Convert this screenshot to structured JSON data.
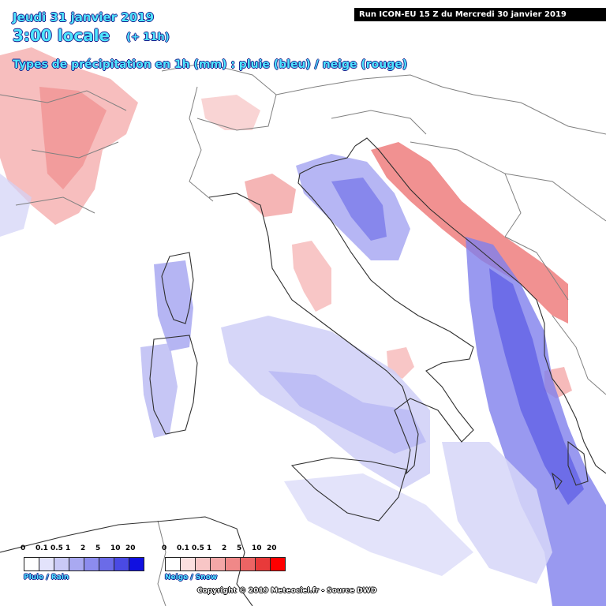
{
  "header": {
    "date": "Jeudi 31 janvier 2019",
    "time": "3:00 locale",
    "lead": "(+ 11h)",
    "subtitle": "Types de précipitation en 1h (mm) : pluie (bleu) / neige (rouge)",
    "run": "Run ICON-EU 15 Z du Mercredi 30 janvier 2019"
  },
  "legend_rain": {
    "label": "Pluie / Rain",
    "ticks": [
      "0",
      "0.1",
      "0.5",
      "1",
      "2",
      "5",
      "10",
      "20"
    ],
    "colors": [
      "#ffffff",
      "#e3e3fb",
      "#c9c9f6",
      "#a9a9f1",
      "#8c8cee",
      "#6b6be8",
      "#4a4ae4",
      "#1010e0"
    ]
  },
  "legend_snow": {
    "label": "Neige / Snow",
    "ticks": [
      "0",
      "0.1",
      "0.5",
      "1",
      "2",
      "5",
      "10",
      "20"
    ],
    "colors": [
      "#ffffff",
      "#fbe0e0",
      "#f8c6c6",
      "#f4a7a7",
      "#f08888",
      "#ec6464",
      "#e83a3a",
      "#ff0000"
    ]
  },
  "copyright": "Copyright © 2019 Meteociel.fr - Source DWD",
  "map": {
    "land_color": "#ffffff",
    "border_color": "#808080",
    "coast_color": "#303030"
  }
}
